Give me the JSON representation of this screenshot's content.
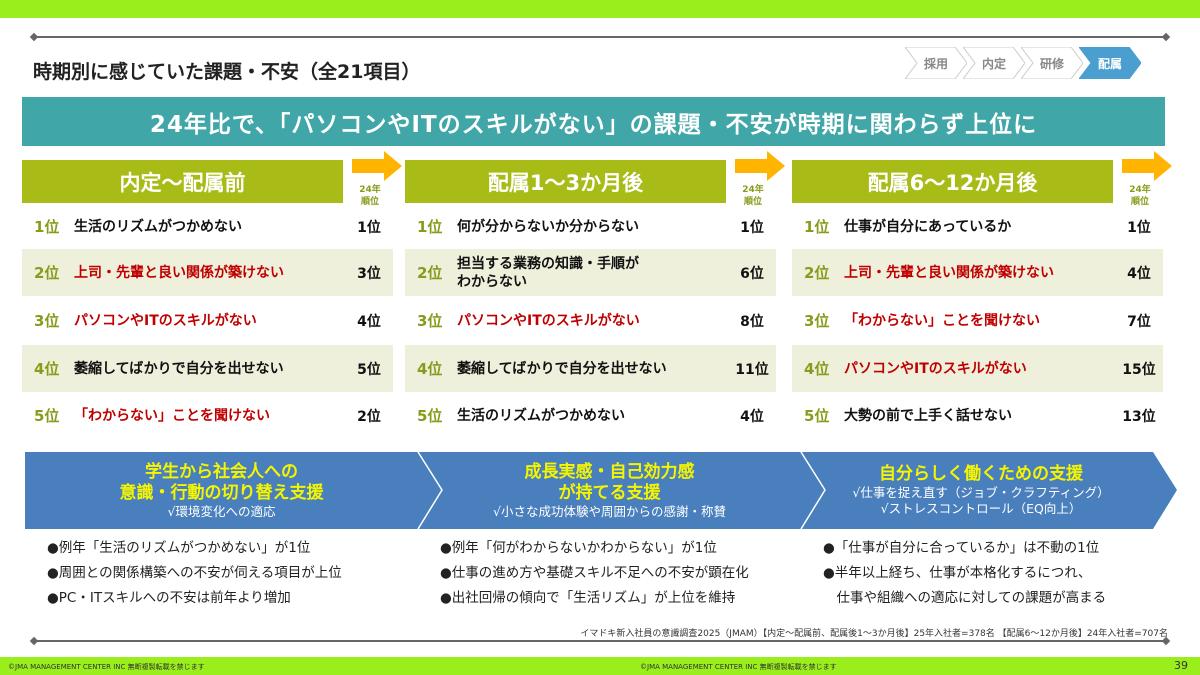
{
  "title": "時期別に感じていた課題・不安（全21項目）",
  "steps": [
    {
      "label": "採用",
      "active": false
    },
    {
      "label": "内定",
      "active": false
    },
    {
      "label": "研修",
      "active": false
    },
    {
      "label": "配属",
      "active": true
    }
  ],
  "banner": "24年比で、「パソコンやITのスキルがない」の課題・不安が時期に関わらず上位に",
  "rank_header": "24年\n順位",
  "rank_header_l1": "24年",
  "rank_header_l2": "順位",
  "colors": {
    "accent_green": "#99ee1c",
    "olive": "#a9bb17",
    "teal": "#40a6a7",
    "blue": "#4a7fbd",
    "red": "#c00000",
    "arrow": "#ffb400"
  },
  "columns": [
    {
      "title": "内定〜配属前",
      "rows": [
        {
          "rank": "1位",
          "item": "生活のリズムがつかめない",
          "prev": "1位",
          "highlight": false
        },
        {
          "rank": "2位",
          "item": "上司・先輩と良い関係が築けない",
          "prev": "3位",
          "highlight": true
        },
        {
          "rank": "3位",
          "item": "パソコンやITのスキルがない",
          "prev": "4位",
          "highlight": true
        },
        {
          "rank": "4位",
          "item": "萎縮してばかりで自分を出せない",
          "prev": "5位",
          "highlight": false
        },
        {
          "rank": "5位",
          "item": "「わからない」ことを聞けない",
          "prev": "2位",
          "highlight": true
        }
      ]
    },
    {
      "title": "配属1〜3か月後",
      "rows": [
        {
          "rank": "1位",
          "item": "何が分からないか分からない",
          "prev": "1位",
          "highlight": false
        },
        {
          "rank": "2位",
          "item": "担当する業務の知識・手順が\nわからない",
          "prev": "6位",
          "highlight": false
        },
        {
          "rank": "3位",
          "item": "パソコンやITのスキルがない",
          "prev": "8位",
          "highlight": true
        },
        {
          "rank": "4位",
          "item": "萎縮してばかりで自分を出せない",
          "prev": "11位",
          "highlight": false
        },
        {
          "rank": "5位",
          "item": "生活のリズムがつかめない",
          "prev": "4位",
          "highlight": false
        }
      ]
    },
    {
      "title": "配属6〜12か月後",
      "rows": [
        {
          "rank": "1位",
          "item": "仕事が自分にあっているか",
          "prev": "1位",
          "highlight": false
        },
        {
          "rank": "2位",
          "item": "上司・先輩と良い関係が築けない",
          "prev": "4位",
          "highlight": true
        },
        {
          "rank": "3位",
          "item": "「わからない」ことを聞けない",
          "prev": "7位",
          "highlight": true
        },
        {
          "rank": "4位",
          "item": "パソコンやITのスキルがない",
          "prev": "15位",
          "highlight": true
        },
        {
          "rank": "5位",
          "item": "大勢の前で上手く話せない",
          "prev": "13位",
          "highlight": false
        }
      ]
    }
  ],
  "supports": [
    {
      "heading": [
        "学生から社会人への",
        "意識・行動の切り替え支援"
      ],
      "subs": [
        "√環境変化への適応"
      ],
      "bullets": [
        "●例年「生活のリズムがつかめない」が1位",
        "●周囲との関係構築への不安が伺える項目が上位",
        "●PC・ITスキルへの不安は前年より増加"
      ]
    },
    {
      "heading": [
        "成長実感・自己効力感",
        "が持てる支援"
      ],
      "subs": [
        "√小さな成功体験や周囲からの感謝・称賛"
      ],
      "bullets": [
        "●例年「何がわからないかわからない」が1位",
        "●仕事の進め方や基礎スキル不足への不安が顕在化",
        "●出社回帰の傾向で「生活リズム」が上位を維持"
      ]
    },
    {
      "heading": [
        "自分らしく働くための支援"
      ],
      "subs": [
        "√仕事を捉え直す（ジョブ・クラフティング）",
        "√ストレスコントロール（EQ向上）"
      ],
      "bullets": [
        "●「仕事が自分に合っているか」は不動の1位",
        "●半年以上経ち、仕事が本格化するにつれ、",
        "　仕事や組織への適応に対しての課題が高まる"
      ]
    }
  ],
  "source": "イマドキ新入社員の意識調査2025（JMAM）【内定〜配属前、配属後1〜3か月後】25年入社者=378名 【配属6〜12か月後】24年入社者=707名",
  "footer": {
    "copyright": "©JMA MANAGEMENT CENTER INC  無断複製転載を禁じます",
    "page": "39"
  }
}
